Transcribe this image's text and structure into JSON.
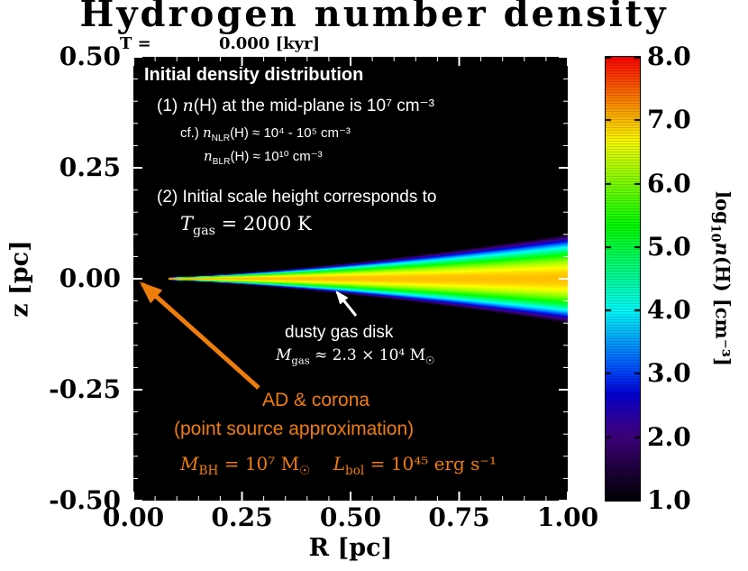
{
  "colors": {
    "accent_orange": "#ef7d0c",
    "plot_background": "#000000",
    "annotation_white": "#ffffff"
  },
  "time_label": "T =            0.000 [kyr]",
  "chart_data": {
    "type": "heatmap",
    "title": "Hydrogen number density",
    "xlabel": "R [pc]",
    "ylabel": "z [pc]",
    "xlim": [
      0.0,
      1.0
    ],
    "ylim": [
      -0.5,
      0.5
    ],
    "x_ticks": [
      "0.00",
      "0.25",
      "0.50",
      "0.75",
      "1.00"
    ],
    "y_ticks": [
      "0.50",
      "0.25",
      "0.00",
      "-0.25",
      "-0.50"
    ],
    "minor_tick_step": 0.05,
    "grid": false,
    "colorbar": {
      "min": 1.0,
      "max": 8.0,
      "tick_labels": [
        "8.0",
        "7.0",
        "6.0",
        "5.0",
        "4.0",
        "3.0",
        "2.0",
        "1.0"
      ],
      "label": {
        "pre": "log",
        "sub": "10",
        "var": "n",
        "rest": "(H) [cm⁻³]"
      }
    },
    "model": {
      "midplane_log10_density": 7,
      "inner_radius_pc": 0.08,
      "scale_height_at_1pc": 0.019,
      "flaring_index": 1.5
    }
  },
  "annotations": {
    "heading": "Initial density distribution",
    "item1": {
      "pre": "(1)  ",
      "var": "n",
      "rest": "(H) at the mid-plane is 10⁷ cm⁻³"
    },
    "cf_nlr": {
      "pre": "cf.)  ",
      "var": "n",
      "sub": "NLR",
      "rest": "(H) ≈ 10⁴ - 10⁵ cm⁻³"
    },
    "cf_blr": {
      "var": "n",
      "sub": "BLR",
      "rest": "(H) ≈ 10¹⁰ cm⁻³"
    },
    "item2": "(2) Initial scale height corresponds to",
    "tgas": {
      "var": "T",
      "sub": "gas",
      "rest": " = 2000 K"
    },
    "disk_label": "dusty gas disk",
    "disk_mass": {
      "var": "M",
      "sub": "gas",
      "rest": " ≈ 2.3 × 10⁴ M",
      "sub2": "☉"
    },
    "ad_line1": "AD & corona",
    "ad_line2": "(point source approximation)",
    "bh_params": {
      "var": "M",
      "sub": "BH",
      "rest": " = 10⁷ M",
      "sub2": "☉",
      "gap": "    ",
      "var2": "L",
      "sub3": "bol",
      "rest2": " = 10⁴⁵ erg s⁻¹"
    }
  }
}
